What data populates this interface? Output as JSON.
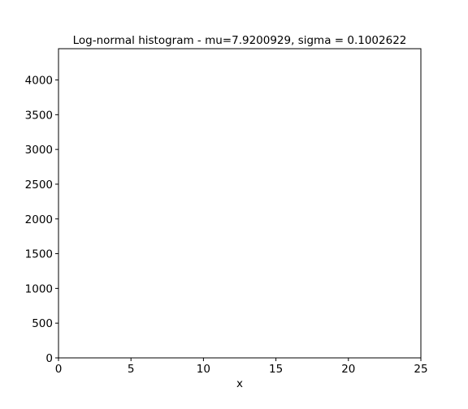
{
  "chart_data": {
    "type": "bar",
    "title": "Log-normal histogram - mu=7.9200929, sigma = 0.1002622",
    "xlabel": "x",
    "ylabel": "",
    "xlim": [
      0,
      25
    ],
    "ylim": [
      0,
      4450
    ],
    "x_ticks": [
      0,
      5,
      10,
      15,
      20,
      25
    ],
    "y_ticks": [
      0,
      500,
      1000,
      1500,
      2000,
      2500,
      3000,
      3500,
      4000
    ],
    "bins": [],
    "counts": [],
    "grid": false,
    "legend": "none",
    "colors": {
      "background": "#ffffff",
      "axes": "#000000",
      "text": "#000000"
    }
  }
}
